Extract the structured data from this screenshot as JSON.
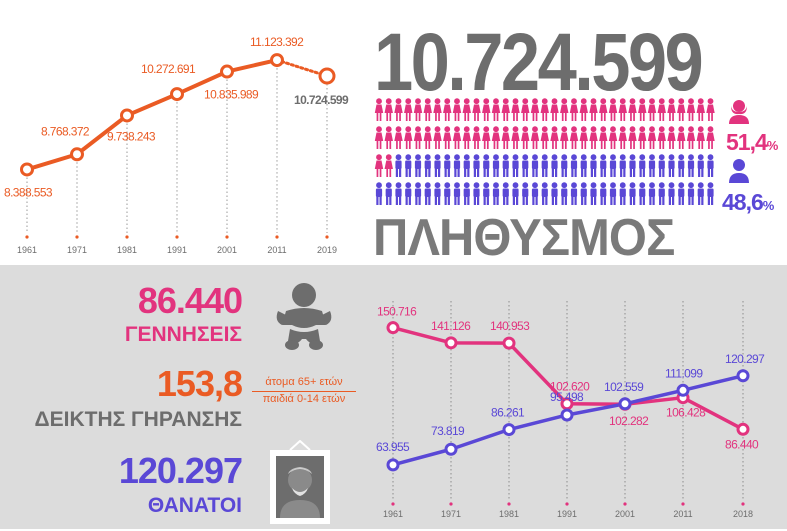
{
  "colors": {
    "orange": "#ea5b24",
    "pink": "#e2337e",
    "purple": "#5a48d6",
    "grey_text": "#6d6d6d",
    "bg_bottom": "#dcdcdc"
  },
  "summary": {
    "population_total": "10.724.599",
    "population_title": "ΠΛΗΘΥΣΜΟΣ",
    "female_pct": "51,4",
    "male_pct": "48,6",
    "pct_sign": "%",
    "female_icon": "female-person-icon",
    "male_icon": "male-person-icon"
  },
  "pictogram": {
    "total_icons": 140,
    "female_icons": 72,
    "per_row": 35
  },
  "stats": {
    "births_value": "86.440",
    "births_label": "ΓΕΝΝΗΣΕΙΣ",
    "aging_value": "153,8",
    "aging_label": "ΔΕΙΚΤΗΣ ΓΗΡΑΝΣΗΣ",
    "aging_numerator": "άτομα 65+ ετών",
    "aging_denominator": "παιδιά 0-14 ετών",
    "deaths_value": "120.297",
    "deaths_label": "ΘΑΝΑΤΟΙ",
    "baby_icon": "baby-icon",
    "elder_portrait_icon": "elderly-portrait-icon"
  },
  "chart_data": [
    {
      "type": "line",
      "categories": [
        "1961",
        "1971",
        "1981",
        "1991",
        "2001",
        "2011",
        "2019"
      ],
      "series": [
        {
          "values": [
            8388553,
            8768372,
            9738243,
            10272691,
            10835989,
            11123392,
            10724599
          ],
          "labels": [
            "8.388.553",
            "8.768.372",
            "9.738.243",
            "10.272.691",
            "10.835.989",
            "11.123.392",
            "10.724.599"
          ],
          "color": "#ea5b24"
        }
      ],
      "ylim": [
        8000000,
        11500000
      ],
      "grid": "dotted vertical lines",
      "last_segment_dotted": true
    },
    {
      "type": "line",
      "categories": [
        "1961",
        "1971",
        "1981",
        "1991",
        "2001",
        "2011",
        "2018"
      ],
      "series": [
        {
          "values": [
            150716,
            141126,
            140953,
            102620,
            102282,
            106428,
            86440
          ],
          "labels": [
            "150.716",
            "141.126",
            "140.953",
            "102.620",
            "102.282",
            "106.428",
            "86.440"
          ],
          "color": "#e2337e"
        },
        {
          "values": [
            63955,
            73819,
            86261,
            95498,
            102559,
            111099,
            120297
          ],
          "labels": [
            "63.955",
            "73.819",
            "86.261",
            "95.498",
            "102.559",
            "111.099",
            "120.297"
          ],
          "color": "#5a48d6"
        }
      ],
      "ylim": [
        55000,
        160000
      ],
      "grid": "dotted vertical lines"
    }
  ]
}
